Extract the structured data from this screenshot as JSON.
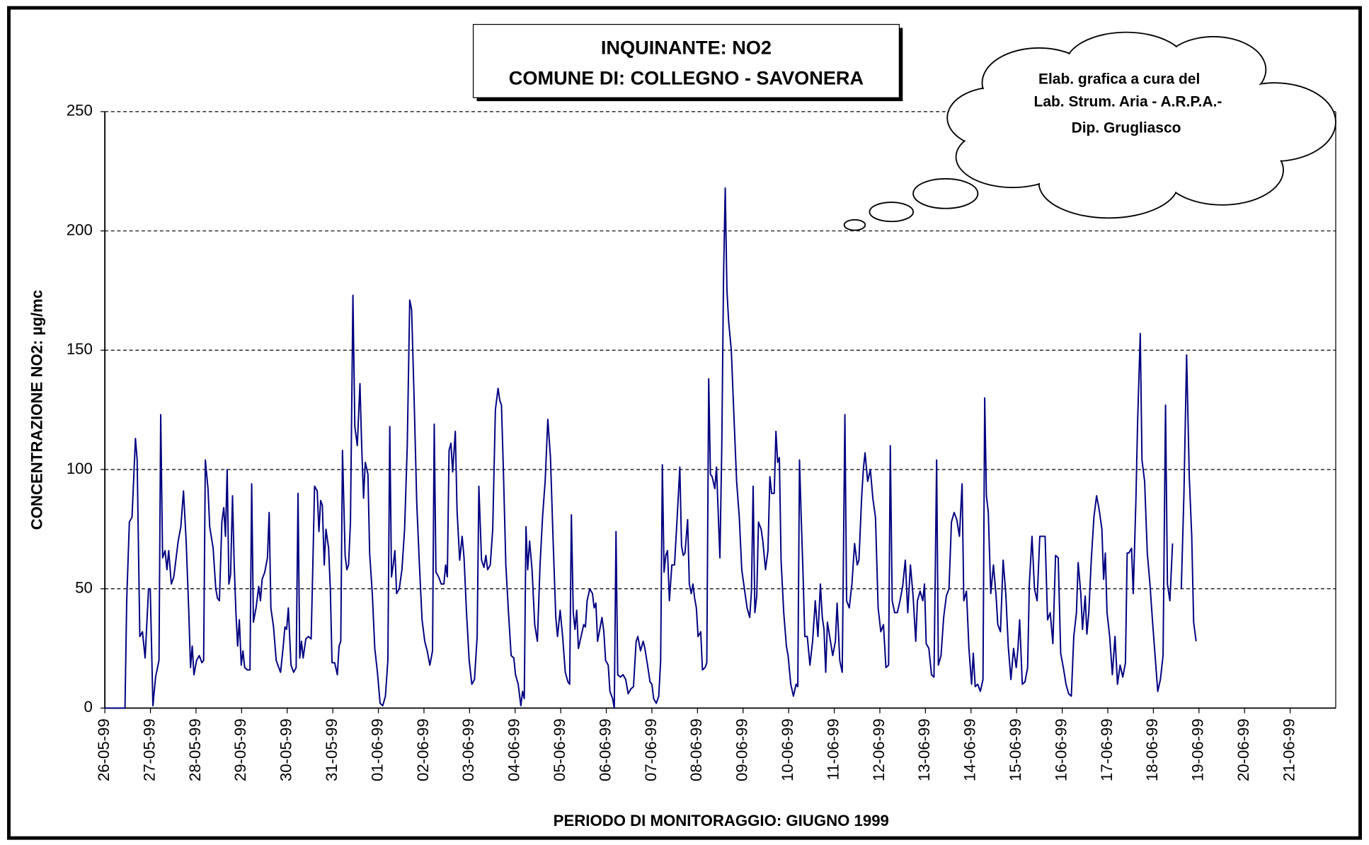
{
  "chart_data": {
    "type": "line",
    "title": [
      "INQUINANTE: NO2",
      "COMUNE DI: COLLEGNO - SAVONERA"
    ],
    "annotation": [
      "Elab. grafica a cura del",
      "Lab. Strum. Aria - A.R.P.A.-",
      "Dip. Grugliasco"
    ],
    "y_label": "CONCENTRAZIONE NO2:  µg/mc",
    "x_label": "PERIODO DI MONITORAGGIO: GIUGNO 1999",
    "color": "#000080",
    "grid": true,
    "ylim": [
      0,
      250
    ],
    "yticks": [
      0,
      50,
      100,
      150,
      200,
      250
    ],
    "xlim": [
      0,
      648
    ],
    "xticks": [
      {
        "value": 0,
        "label": "26-05-99"
      },
      {
        "value": 24,
        "label": "27-05-99"
      },
      {
        "value": 48,
        "label": "28-05-99"
      },
      {
        "value": 72,
        "label": "29-05-99"
      },
      {
        "value": 96,
        "label": "30-05-99"
      },
      {
        "value": 120,
        "label": "31-05-99"
      },
      {
        "value": 144,
        "label": "01-06-99"
      },
      {
        "value": 168,
        "label": "02-06-99"
      },
      {
        "value": 192,
        "label": "03-06-99"
      },
      {
        "value": 216,
        "label": "04-06-99"
      },
      {
        "value": 240,
        "label": "05-06-99"
      },
      {
        "value": 264,
        "label": "06-06-99"
      },
      {
        "value": 288,
        "label": "07-06-99"
      },
      {
        "value": 312,
        "label": "08-06-99"
      },
      {
        "value": 336,
        "label": "09-06-99"
      },
      {
        "value": 360,
        "label": "10-06-99"
      },
      {
        "value": 384,
        "label": "11-06-99"
      },
      {
        "value": 408,
        "label": "12-06-99"
      },
      {
        "value": 432,
        "label": "13-06-99"
      },
      {
        "value": 456,
        "label": "14-06-99"
      },
      {
        "value": 480,
        "label": "15-06-99"
      },
      {
        "value": 504,
        "label": "16-06-99"
      },
      {
        "value": 528,
        "label": "17-06-99"
      },
      {
        "value": 552,
        "label": "18-06-99"
      },
      {
        "value": 576,
        "label": "19-06-99"
      },
      {
        "value": 600,
        "label": "20-06-99"
      },
      {
        "value": 624,
        "label": "21-06-99"
      }
    ],
    "x": [
      0,
      10.6,
      11.5,
      12.9,
      14.3,
      16.1,
      17.0,
      18.4,
      19.8,
      21.2,
      23.0,
      23.9,
      25.3,
      26.7,
      28.5,
      29.4,
      30.4,
      31.7,
      32.7,
      33.6,
      35.0,
      36.3,
      38.6,
      40.0,
      41.4,
      42.8,
      44.2,
      45.1,
      46.0,
      46.9,
      48.3,
      49.7,
      51.1,
      52.0,
      52.9,
      54.3,
      55.2,
      57.0,
      58.4,
      59.3,
      60.3,
      61.6,
      62.6,
      63.5,
      64.4,
      65.3,
      66.2,
      67.2,
      68.1,
      69.0,
      69.9,
      70.8,
      71.8,
      72.7,
      73.6,
      75.0,
      76.4,
      77.3,
      78.2,
      79.6,
      81.0,
      81.9,
      82.8,
      84.2,
      85.6,
      86.5,
      87.4,
      88.8,
      90.2,
      91.1,
      92.5,
      93.8,
      94.8,
      95.7,
      96.6,
      98.0,
      99.4,
      100.7,
      101.7,
      102.6,
      103.5,
      104.4,
      105.8,
      107.2,
      108.6,
      109.5,
      110.4,
      111.8,
      112.7,
      113.6,
      114.5,
      115.5,
      116.4,
      117.8,
      118.7,
      119.6,
      121.0,
      122.4,
      123.3,
      124.2,
      125.1,
      126.5,
      127.4,
      128.3,
      129.3,
      130.6,
      131.6,
      132.9,
      134.3,
      135.2,
      136.2,
      137.1,
      138.5,
      139.4,
      140.8,
      142.1,
      143.5,
      144.9,
      146.3,
      147.7,
      149.0,
      150.0,
      150.9,
      151.8,
      152.7,
      153.6,
      155.0,
      156.4,
      157.8,
      159.2,
      160.5,
      161.5,
      162.8,
      164.2,
      165.6,
      167.0,
      168.4,
      169.7,
      171.1,
      172.5,
      173.4,
      174.3,
      175.7,
      177.1,
      178.5,
      179.4,
      180.3,
      181.2,
      182.2,
      183.1,
      184.5,
      185.4,
      186.8,
      188.1,
      189.1,
      190.4,
      191.8,
      193.2,
      194.6,
      196.0,
      196.9,
      198.3,
      199.6,
      200.6,
      201.5,
      202.9,
      204.2,
      205.6,
      207.0,
      207.9,
      208.8,
      209.8,
      211.1,
      212.5,
      213.9,
      215.3,
      216.2,
      217.6,
      219.0,
      219.9,
      220.8,
      221.7,
      222.6,
      223.6,
      224.9,
      226.3,
      227.7,
      229.1,
      230.5,
      231.8,
      233.2,
      234.6,
      236.0,
      237.4,
      238.3,
      239.7,
      241.0,
      242.4,
      243.8,
      244.7,
      245.6,
      246.6,
      247.5,
      248.4,
      249.3,
      250.7,
      252.1,
      253.0,
      253.9,
      255.3,
      256.7,
      257.6,
      258.5,
      259.4,
      260.8,
      261.7,
      262.7,
      263.6,
      265.0,
      265.9,
      267.3,
      268.2,
      269.1,
      270.0,
      271.4,
      272.8,
      274.2,
      275.5,
      276.9,
      278.3,
      279.7,
      280.6,
      282.0,
      283.4,
      284.3,
      285.7,
      287.0,
      288.0,
      288.9,
      290.3,
      291.6,
      292.6,
      293.5,
      294.4,
      295.3,
      296.2,
      297.2,
      298.5,
      299.9,
      301.3,
      302.7,
      303.6,
      304.5,
      305.4,
      306.8,
      307.7,
      308.7,
      309.6,
      310.5,
      311.4,
      312.3,
      313.7,
      314.6,
      316.0,
      316.9,
      317.9,
      318.8,
      319.7,
      321.1,
      322.0,
      322.9,
      323.8,
      324.8,
      325.7,
      326.6,
      327.5,
      328.4,
      329.8,
      331.2,
      332.6,
      334.0,
      335.3,
      336.7,
      338.1,
      339.5,
      340.4,
      341.3,
      342.2,
      343.2,
      344.1,
      345.5,
      346.4,
      347.8,
      349.1,
      350.1,
      351.0,
      352.4,
      353.3,
      354.2,
      355.1,
      356.0,
      357.4,
      358.8,
      359.7,
      361.1,
      362.5,
      363.9,
      364.8,
      365.7,
      366.6,
      367.5,
      368.5,
      369.8,
      371.2,
      372.6,
      374.0,
      375.4,
      376.7,
      377.7,
      378.6,
      379.5,
      380.4,
      381.8,
      383.2,
      384.6,
      385.5,
      386.9,
      388.2,
      389.6,
      390.5,
      391.9,
      393.3,
      394.7,
      396.1,
      397.0,
      398.4,
      399.3,
      400.2,
      401.6,
      403.0,
      404.3,
      405.7,
      407.1,
      408.5,
      409.9,
      411.2,
      412.6,
      413.5,
      414.5,
      415.8,
      417.2,
      418.6,
      420.0,
      421.4,
      422.7,
      424.1,
      425.5,
      426.9,
      427.8,
      429.2,
      430.6,
      431.5,
      432.4,
      433.8,
      435.2,
      436.5,
      437.9,
      438.8,
      440.2,
      441.6,
      443.0,
      444.4,
      445.7,
      447.1,
      448.5,
      449.9,
      451.3,
      452.2,
      453.6,
      454.9,
      456.3,
      457.2,
      458.2,
      459.5,
      460.9,
      462.3,
      463.2,
      464.1,
      465.1,
      466.4,
      467.8,
      469.2,
      470.1,
      471.5,
      472.9,
      474.3,
      475.6,
      477.0,
      478.4,
      479.8,
      480.7,
      481.6,
      483.0,
      484.4,
      485.8,
      486.7,
      488.1,
      489.4,
      490.8,
      492.2,
      493.6,
      495.0,
      496.3,
      497.7,
      499.1,
      500.5,
      501.9,
      503.2,
      504.6,
      506.0,
      507.4,
      508.8,
      510.1,
      511.5,
      512.4,
      513.8,
      514.7,
      516.1,
      517.0,
      518.0,
      519.3,
      520.7,
      522.1,
      523.5,
      524.9,
      525.8,
      526.7,
      527.6,
      529.0,
      530.4,
      531.8,
      533.1,
      534.5,
      535.9,
      537.3,
      538.2,
      539.1,
      540.5,
      541.4,
      542.8,
      543.7,
      545.1,
      546.0,
      547.4,
      548.8,
      550.2,
      551.5,
      552.9,
      554.3,
      555.7,
      557.1,
      558.4,
      559.4,
      560.7,
      562.1,
      564.0,
      566.7,
      568.1,
      569.5,
      570.9,
      572.2,
      573.2,
      574.5
    ],
    "values": [
      0,
      0,
      45,
      78,
      80,
      113,
      104,
      30,
      32,
      21,
      50,
      50,
      1,
      13,
      20,
      123,
      63,
      66,
      58,
      66,
      52,
      55,
      70,
      76,
      91,
      70,
      40,
      17,
      26,
      14,
      20,
      22,
      19,
      20,
      104,
      92,
      76,
      67,
      50,
      46,
      45,
      78,
      84,
      72,
      100,
      52,
      56,
      89,
      60,
      40,
      26,
      37,
      18,
      24,
      17,
      16,
      16,
      94,
      36,
      42,
      51,
      45,
      54,
      57,
      63,
      82,
      42,
      34,
      20,
      18,
      15,
      25,
      34,
      33,
      42,
      18,
      15,
      17,
      90,
      21,
      28,
      21,
      29,
      30,
      29,
      60,
      93,
      91,
      74,
      87,
      85,
      60,
      75,
      67,
      50,
      19,
      19,
      14,
      26,
      28,
      108,
      64,
      58,
      60,
      78,
      173,
      118,
      110,
      136,
      110,
      88,
      103,
      98,
      65,
      48,
      25,
      15,
      2,
      1,
      5,
      20,
      118,
      55,
      60,
      66,
      48,
      50,
      58,
      75,
      110,
      171,
      167,
      130,
      86,
      60,
      37,
      28,
      24,
      18,
      24,
      119,
      57,
      55,
      52,
      52,
      60,
      55,
      108,
      111,
      99,
      116,
      83,
      62,
      72,
      63,
      40,
      20,
      10,
      12,
      30,
      93,
      62,
      59,
      64,
      58,
      60,
      75,
      125,
      134,
      129,
      127,
      100,
      60,
      40,
      22,
      21,
      14,
      10,
      1,
      7,
      4,
      76,
      58,
      70,
      58,
      35,
      28,
      60,
      81,
      95,
      121,
      105,
      70,
      38,
      30,
      41,
      30,
      15,
      11,
      10,
      81,
      40,
      33,
      41,
      25,
      30,
      35,
      34,
      45,
      50,
      48,
      42,
      44,
      28,
      34,
      38,
      32,
      20,
      18,
      7,
      4,
      0,
      74,
      14,
      13,
      14,
      12,
      6,
      8,
      9,
      28,
      30,
      24,
      28,
      25,
      18,
      11,
      10,
      4,
      2,
      5,
      20,
      102,
      57,
      64,
      66,
      45,
      60,
      60,
      80,
      101,
      68,
      64,
      65,
      79,
      52,
      48,
      52,
      46,
      42,
      30,
      32,
      16,
      17,
      19,
      138,
      98,
      97,
      92,
      101,
      82,
      63,
      110,
      180,
      218,
      175,
      162,
      150,
      122,
      95,
      80,
      58,
      50,
      42,
      38,
      49,
      93,
      40,
      47,
      78,
      75,
      70,
      58,
      66,
      97,
      90,
      90,
      116,
      103,
      105,
      62,
      40,
      26,
      22,
      10,
      5,
      10,
      9,
      104,
      80,
      58,
      30,
      30,
      18,
      28,
      45,
      30,
      52,
      38,
      33,
      15,
      36,
      29,
      22,
      28,
      44,
      20,
      15,
      123,
      45,
      42,
      52,
      69,
      60,
      62,
      88,
      100,
      107,
      95,
      100,
      88,
      80,
      42,
      32,
      35,
      17,
      18,
      110,
      45,
      40,
      40,
      45,
      51,
      62,
      40,
      60,
      47,
      28,
      45,
      49,
      45,
      52,
      27,
      25,
      14,
      13,
      104,
      18,
      22,
      38,
      47,
      50,
      78,
      82,
      79,
      72,
      94,
      45,
      49,
      25,
      10,
      23,
      9,
      10,
      7,
      12,
      130,
      89,
      82,
      48,
      60,
      47,
      35,
      32,
      62,
      48,
      26,
      12,
      25,
      17,
      25,
      37,
      10,
      11,
      17,
      52,
      72,
      50,
      45,
      72,
      72,
      72,
      37,
      40,
      27,
      64,
      63,
      23,
      17,
      10,
      6,
      5,
      30,
      40,
      61,
      48,
      33,
      47,
      31,
      40,
      62,
      80,
      89,
      83,
      75,
      54,
      65,
      40,
      30,
      14,
      30,
      10,
      18,
      13,
      19,
      65,
      65,
      67,
      48,
      87,
      120,
      157,
      104,
      95,
      65,
      52,
      37,
      22,
      7,
      12,
      22,
      127,
      52,
      45,
      69,
      null,
      50,
      90,
      148,
      97,
      72,
      36,
      28
    ]
  }
}
